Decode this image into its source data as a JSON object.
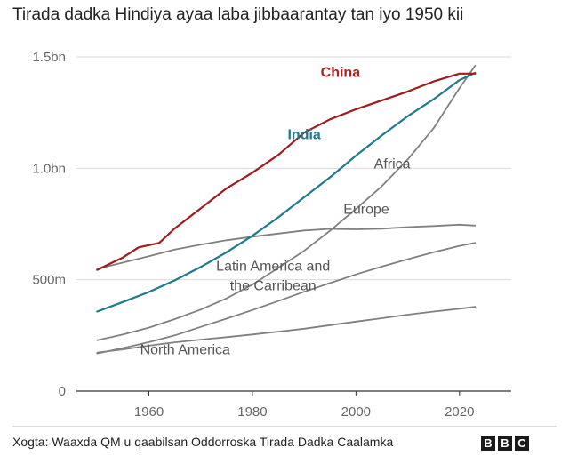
{
  "title": "Tirada dadka Hindiya ayaa laba jibbaarantay tan iyo 1950 kii",
  "source": "Xogta: Waaxda QM u qaabilsan Oddorroska Tirada Dadka Caalamka",
  "logo": {
    "letters": [
      "B",
      "B",
      "C"
    ]
  },
  "chart_data": {
    "type": "line",
    "title": "Tirada dadka Hindiya ayaa laba jibbaarantay tan iyo 1950 kii",
    "xlabel": "",
    "ylabel": "",
    "xlim": [
      1946,
      2030
    ],
    "ylim": [
      0,
      1500000000
    ],
    "x_ticks": [
      {
        "value": 1960,
        "label": "1960"
      },
      {
        "value": 1980,
        "label": "1980"
      },
      {
        "value": 2000,
        "label": "2000"
      },
      {
        "value": 2020,
        "label": "2020"
      }
    ],
    "y_ticks": [
      {
        "value": 0,
        "label": "0"
      },
      {
        "value": 500000000,
        "label": "500m"
      },
      {
        "value": 1000000000,
        "label": "1.0bn"
      },
      {
        "value": 1500000000,
        "label": "1.5bn"
      }
    ],
    "grid": true,
    "series": [
      {
        "name": "China",
        "color": "#a01c1c",
        "label_color": "#b01f1f",
        "bold": true,
        "label_at": [
          1997,
          1410000000
        ],
        "x": [
          1950,
          1955,
          1958,
          1960,
          1962,
          1965,
          1970,
          1975,
          1980,
          1985,
          1990,
          1995,
          2000,
          2005,
          2010,
          2015,
          2020,
          2023
        ],
        "y": [
          544000000,
          600000000,
          645000000,
          655000000,
          665000000,
          730000000,
          820000000,
          910000000,
          980000000,
          1060000000,
          1160000000,
          1220000000,
          1265000000,
          1305000000,
          1345000000,
          1390000000,
          1425000000,
          1425000000
        ]
      },
      {
        "name": "India",
        "color": "#1f7a8c",
        "label_color": "#1f7a8c",
        "bold": true,
        "label_at": [
          1990,
          1130000000
        ],
        "x": [
          1950,
          1955,
          1960,
          1965,
          1970,
          1975,
          1980,
          1985,
          1990,
          1995,
          2000,
          2005,
          2010,
          2015,
          2020,
          2023
        ],
        "y": [
          357000000,
          400000000,
          445000000,
          497000000,
          557000000,
          623000000,
          697000000,
          780000000,
          870000000,
          960000000,
          1057000000,
          1148000000,
          1234000000,
          1310000000,
          1396000000,
          1428000000
        ]
      },
      {
        "name": "Africa",
        "color": "#808080",
        "label_color": "#555555",
        "bold": false,
        "label_at": [
          2007,
          1000000000
        ],
        "x": [
          1950,
          1955,
          1960,
          1965,
          1970,
          1975,
          1980,
          1985,
          1990,
          1995,
          2000,
          2005,
          2010,
          2015,
          2020,
          2023
        ],
        "y": [
          228000000,
          254000000,
          285000000,
          323000000,
          366000000,
          416000000,
          478000000,
          553000000,
          630000000,
          720000000,
          818000000,
          920000000,
          1040000000,
          1180000000,
          1360000000,
          1460000000
        ]
      },
      {
        "name": "Europe",
        "color": "#808080",
        "label_color": "#555555",
        "bold": false,
        "label_at": [
          2002,
          795000000
        ],
        "x": [
          1950,
          1955,
          1960,
          1965,
          1970,
          1975,
          1980,
          1985,
          1990,
          1995,
          2000,
          2005,
          2010,
          2015,
          2020,
          2023
        ],
        "y": [
          549000000,
          577000000,
          605000000,
          635000000,
          657000000,
          677000000,
          693000000,
          707000000,
          721000000,
          728000000,
          726000000,
          729000000,
          736000000,
          741000000,
          747000000,
          743000000
        ]
      },
      {
        "name": "Latin America and the Carribean",
        "label_lines": [
          "Latin America and",
          "the Carribean"
        ],
        "color": "#808080",
        "label_color": "#555555",
        "bold": false,
        "label_at": [
          1984,
          540000000
        ],
        "x": [
          1950,
          1955,
          1960,
          1965,
          1970,
          1975,
          1980,
          1985,
          1990,
          1995,
          2000,
          2005,
          2010,
          2015,
          2020,
          2023
        ],
        "y": [
          169000000,
          193000000,
          220000000,
          250000000,
          288000000,
          325000000,
          364000000,
          404000000,
          446000000,
          485000000,
          524000000,
          559000000,
          592000000,
          623000000,
          652000000,
          665000000
        ]
      },
      {
        "name": "North America",
        "color": "#808080",
        "label_color": "#555555",
        "bold": false,
        "label_at": [
          1967,
          165000000
        ],
        "x": [
          1950,
          1955,
          1960,
          1965,
          1970,
          1975,
          1980,
          1985,
          1990,
          1995,
          2000,
          2005,
          2010,
          2015,
          2020,
          2023
        ],
        "y": [
          173000000,
          187000000,
          204000000,
          219000000,
          231000000,
          242000000,
          254000000,
          267000000,
          280000000,
          296000000,
          312000000,
          327000000,
          343000000,
          357000000,
          370000000,
          378000000
        ]
      }
    ]
  }
}
